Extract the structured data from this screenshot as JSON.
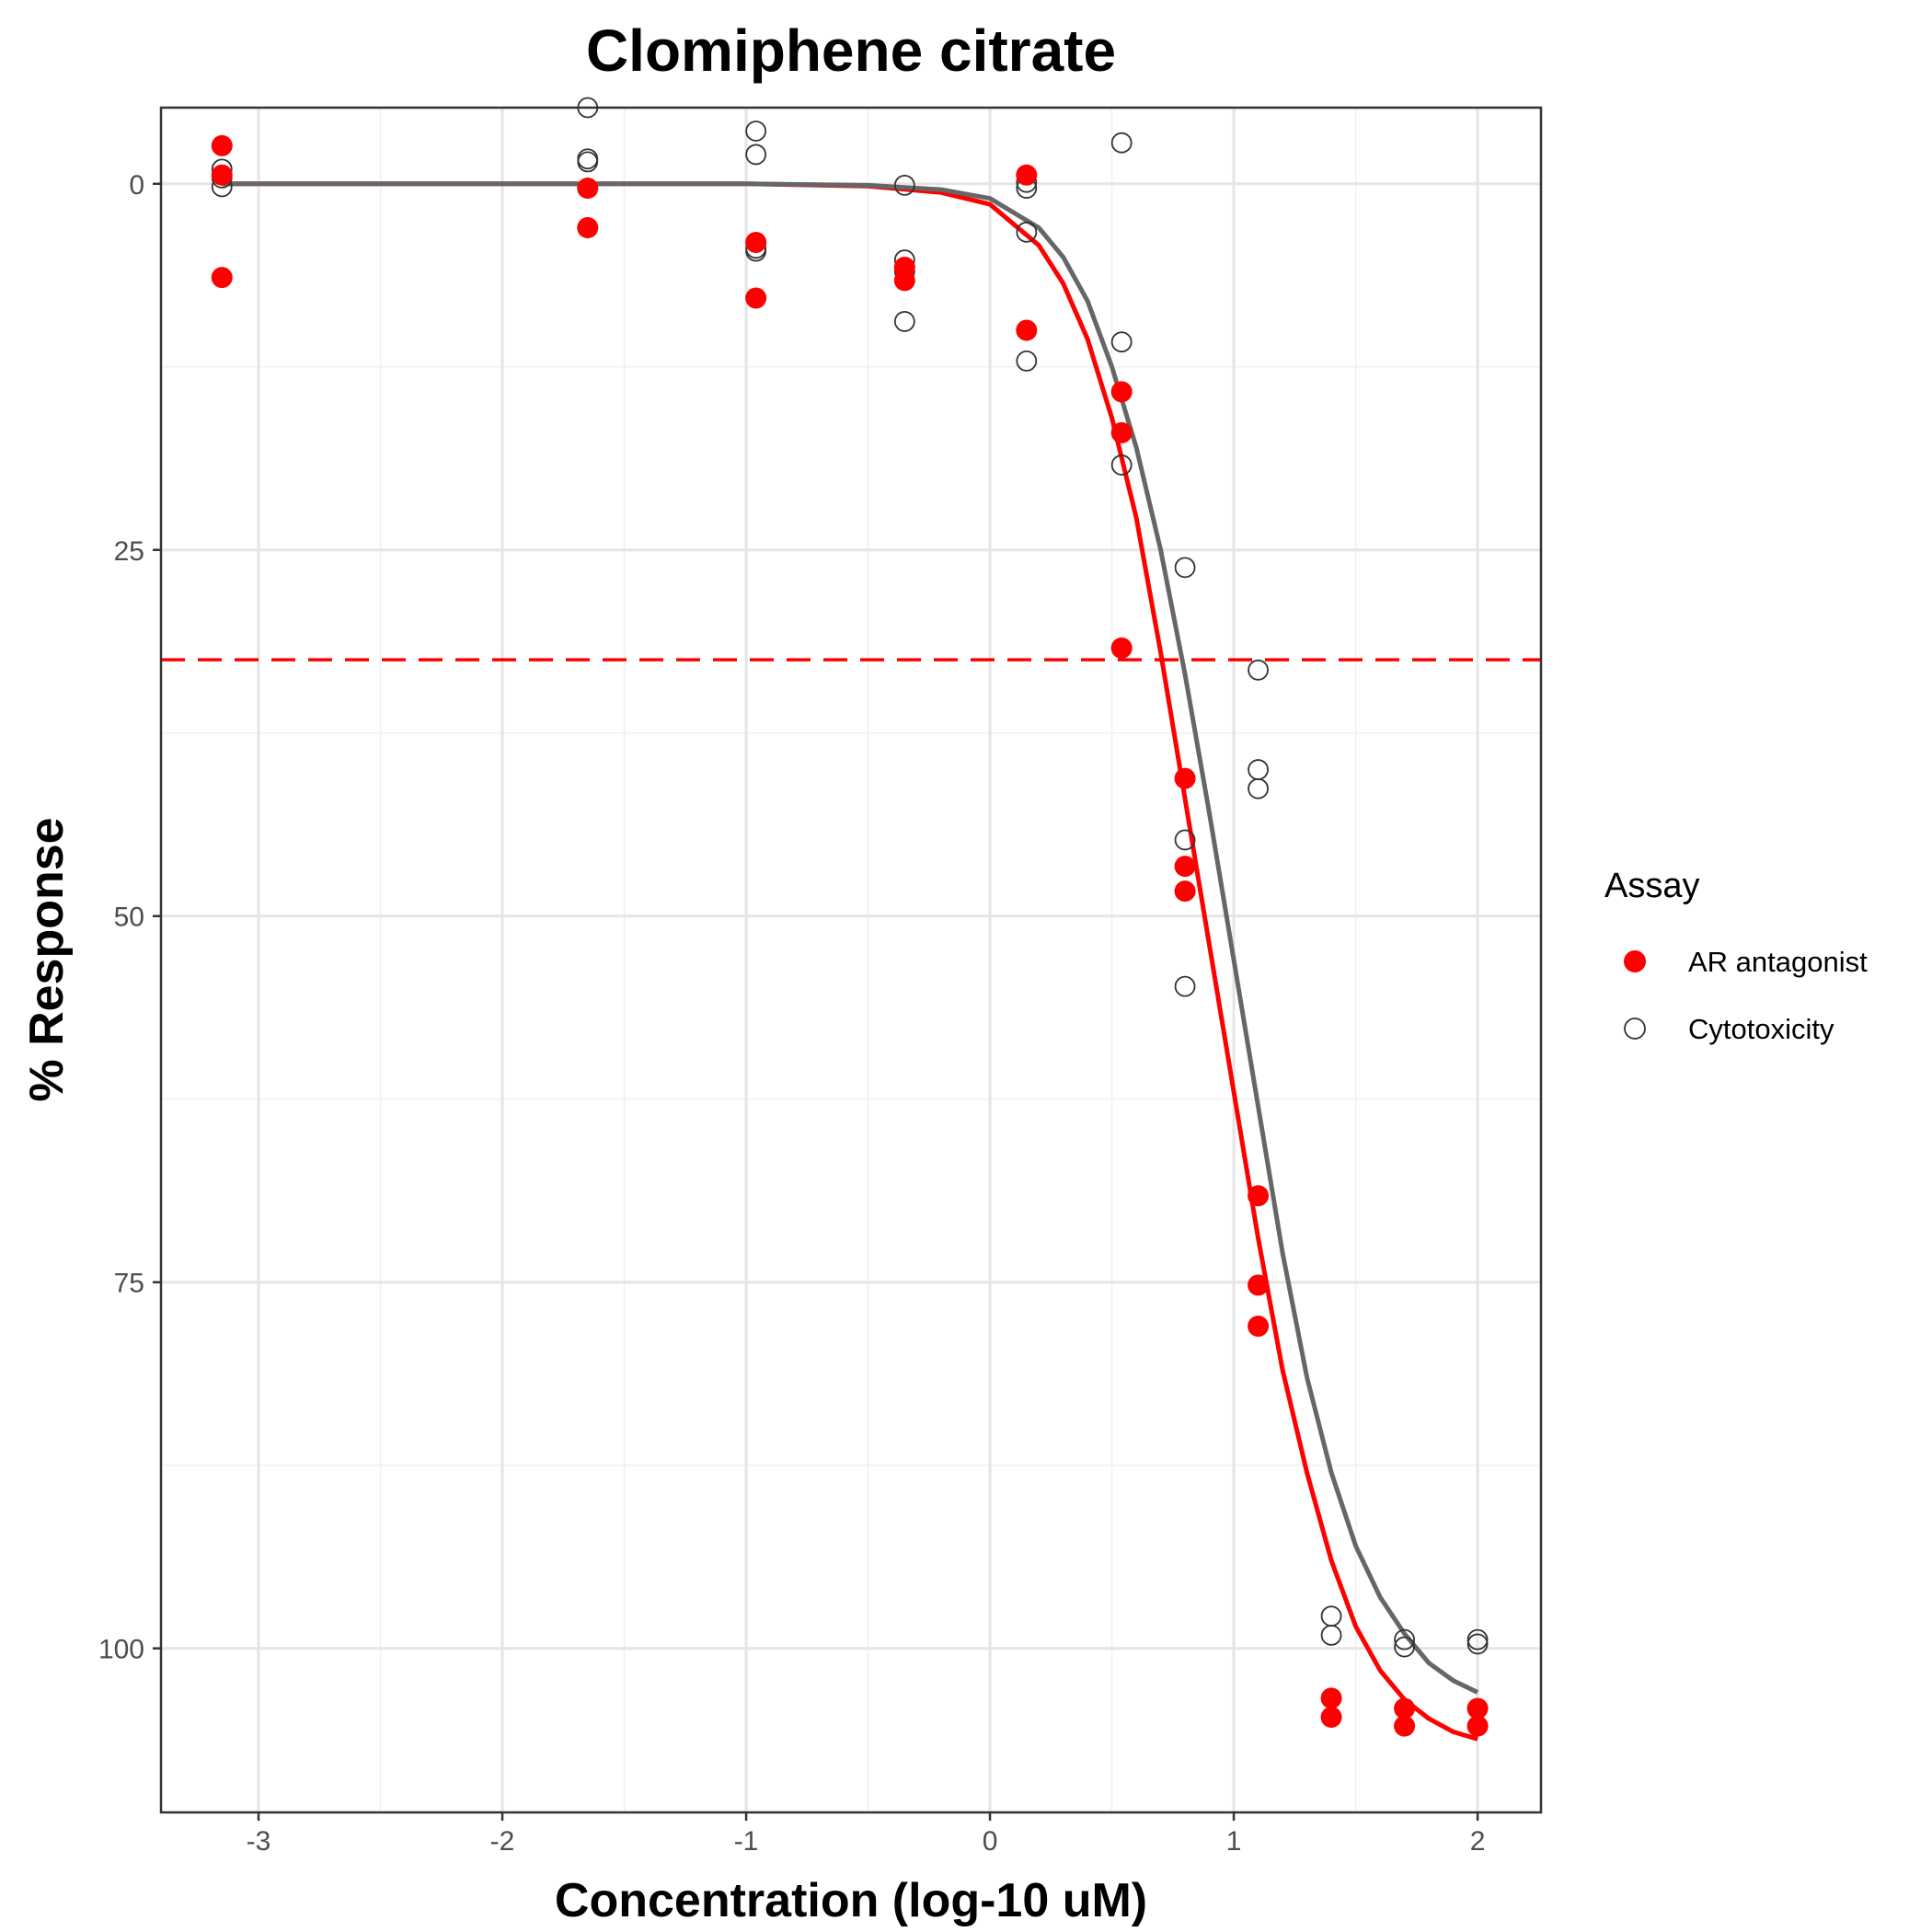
{
  "chart_data": {
    "type": "scatter",
    "title": "Clomiphene citrate",
    "xlabel": "Concentration (log-10 uM)",
    "ylabel": "% Response",
    "xlim": [
      -3.4,
      2.26
    ],
    "ylim": [
      -5.2,
      111.2
    ],
    "y_reversed": true,
    "x_ticks": [
      -3,
      -2,
      -1,
      0,
      1,
      2
    ],
    "y_ticks": [
      0,
      25,
      50,
      75,
      100
    ],
    "grid": true,
    "legend": {
      "title": "Assay",
      "position": "right"
    },
    "threshold_line": {
      "y": 32.5,
      "color": "#ff0000",
      "style": "dashed"
    },
    "series": [
      {
        "name": "AR antagonist",
        "marker": "filled-circle",
        "color": "#ff0000",
        "points": [
          [
            -3.15,
            -2.6
          ],
          [
            -3.15,
            -0.6
          ],
          [
            -3.15,
            6.4
          ],
          [
            -1.65,
            0.3
          ],
          [
            -1.65,
            3.0
          ],
          [
            -0.96,
            4.0
          ],
          [
            -0.96,
            7.8
          ],
          [
            -0.35,
            5.7
          ],
          [
            -0.35,
            6.6
          ],
          [
            0.15,
            -0.6
          ],
          [
            0.15,
            10.0
          ],
          [
            0.54,
            14.2
          ],
          [
            0.54,
            17.0
          ],
          [
            0.54,
            31.7
          ],
          [
            0.8,
            40.6
          ],
          [
            0.8,
            46.6
          ],
          [
            0.8,
            48.3
          ],
          [
            1.1,
            69.1
          ],
          [
            1.1,
            75.2
          ],
          [
            1.1,
            78.0
          ],
          [
            1.4,
            103.4
          ],
          [
            1.4,
            104.7
          ],
          [
            1.7,
            104.1
          ],
          [
            1.7,
            105.3
          ],
          [
            2.0,
            104.1
          ],
          [
            2.0,
            105.3
          ]
        ],
        "curve": [
          [
            -3.15,
            0.0
          ],
          [
            -2.0,
            0.0
          ],
          [
            -1.0,
            0.0
          ],
          [
            -0.5,
            0.15
          ],
          [
            -0.2,
            0.6
          ],
          [
            0.0,
            1.4
          ],
          [
            0.2,
            4.2
          ],
          [
            0.3,
            6.8
          ],
          [
            0.4,
            10.6
          ],
          [
            0.5,
            16.0
          ],
          [
            0.6,
            22.8
          ],
          [
            0.7,
            32.0
          ],
          [
            0.8,
            42.0
          ],
          [
            0.9,
            52.0
          ],
          [
            1.0,
            62.0
          ],
          [
            1.1,
            72.0
          ],
          [
            1.2,
            81.0
          ],
          [
            1.3,
            88.0
          ],
          [
            1.4,
            94.0
          ],
          [
            1.5,
            98.5
          ],
          [
            1.6,
            101.5
          ],
          [
            1.7,
            103.5
          ],
          [
            1.8,
            104.8
          ],
          [
            1.9,
            105.7
          ],
          [
            2.0,
            106.2
          ]
        ]
      },
      {
        "name": "Cytotoxicity",
        "marker": "open-circle",
        "color": "#333333",
        "points": [
          [
            -3.15,
            0.2
          ],
          [
            -3.15,
            -0.4
          ],
          [
            -3.15,
            -1.0
          ],
          [
            -1.65,
            -5.2
          ],
          [
            -1.65,
            -1.7
          ],
          [
            -1.65,
            -1.5
          ],
          [
            -0.96,
            -3.6
          ],
          [
            -0.96,
            -2.0
          ],
          [
            -0.96,
            4.4
          ],
          [
            -0.96,
            4.6
          ],
          [
            -0.35,
            0.1
          ],
          [
            -0.35,
            5.2
          ],
          [
            -0.35,
            6.0
          ],
          [
            -0.35,
            9.4
          ],
          [
            0.15,
            -0.1
          ],
          [
            0.15,
            0.3
          ],
          [
            0.15,
            3.3
          ],
          [
            0.15,
            12.1
          ],
          [
            0.54,
            -2.8
          ],
          [
            0.54,
            10.8
          ],
          [
            0.54,
            19.2
          ],
          [
            0.8,
            26.2
          ],
          [
            0.8,
            44.8
          ],
          [
            0.8,
            54.8
          ],
          [
            1.1,
            33.2
          ],
          [
            1.1,
            40.0
          ],
          [
            1.1,
            41.3
          ],
          [
            1.4,
            97.8
          ],
          [
            1.4,
            99.1
          ],
          [
            1.7,
            99.4
          ],
          [
            1.7,
            99.9
          ],
          [
            2.0,
            99.4
          ],
          [
            2.0,
            99.7
          ]
        ],
        "curve": [
          [
            -3.15,
            0.0
          ],
          [
            -2.0,
            0.0
          ],
          [
            -1.0,
            0.0
          ],
          [
            -0.5,
            0.1
          ],
          [
            -0.2,
            0.4
          ],
          [
            0.0,
            1.0
          ],
          [
            0.2,
            3.0
          ],
          [
            0.3,
            5.0
          ],
          [
            0.4,
            8.0
          ],
          [
            0.5,
            12.5
          ],
          [
            0.6,
            18.0
          ],
          [
            0.7,
            25.0
          ],
          [
            0.8,
            33.5
          ],
          [
            0.9,
            43.0
          ],
          [
            1.0,
            53.0
          ],
          [
            1.1,
            63.0
          ],
          [
            1.2,
            73.0
          ],
          [
            1.3,
            81.5
          ],
          [
            1.4,
            88.0
          ],
          [
            1.5,
            93.0
          ],
          [
            1.6,
            96.5
          ],
          [
            1.7,
            99.0
          ],
          [
            1.8,
            101.0
          ],
          [
            1.9,
            102.2
          ],
          [
            2.0,
            103.0
          ]
        ]
      }
    ]
  }
}
